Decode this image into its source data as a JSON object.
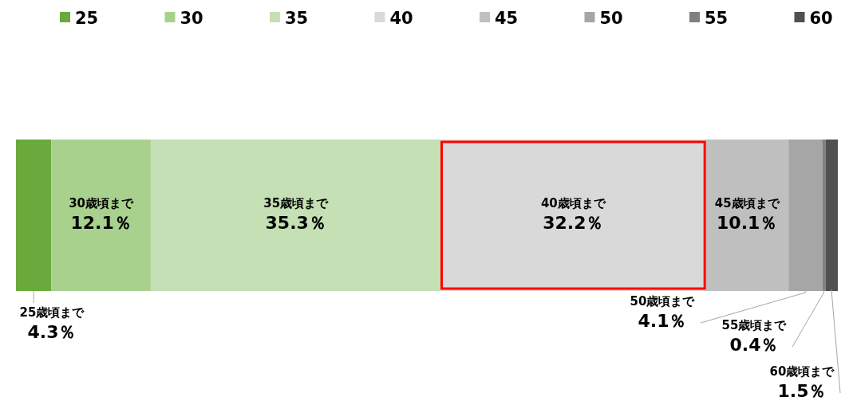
{
  "chart_data": {
    "type": "bar",
    "orientation": "horizontal",
    "stacked": true,
    "categories": [
      null
    ],
    "xlim": [
      0,
      100
    ],
    "tick_labels": false,
    "legend": "top",
    "series": [
      {
        "name": "25",
        "color": "#6aaa3c",
        "values": [
          4.3
        ],
        "value_labels": [
          "25歳頃まで\n4.3％"
        ]
      },
      {
        "name": "30",
        "color": "#a9d18e",
        "values": [
          12.1
        ],
        "value_labels": [
          "30歳頃まで\n12.1％"
        ]
      },
      {
        "name": "35",
        "color": "#c5e0b4",
        "values": [
          35.3
        ],
        "value_labels": [
          "35歳頃まで\n35.3％"
        ]
      },
      {
        "name": "40",
        "color": "#d9d9d9",
        "values": [
          32.2
        ],
        "value_labels": [
          "40歳頃まで\n32.2％"
        ]
      },
      {
        "name": "45",
        "color": "#bfbfbf",
        "values": [
          10.1
        ],
        "value_labels": [
          "45歳頃まで\n10.1％"
        ]
      },
      {
        "name": "50",
        "color": "#a6a6a6",
        "values": [
          4.1
        ],
        "value_labels": [
          "50歳頃まで\n4.1％"
        ]
      },
      {
        "name": "55",
        "color": "#808080",
        "values": [
          0.4
        ],
        "value_labels": [
          "55歳頃まで\n0.4％"
        ]
      },
      {
        "name": "60",
        "color": "#505050",
        "values": [
          1.5
        ],
        "value_labels": [
          "60歳頃まで\n1.5％"
        ]
      }
    ]
  }
}
